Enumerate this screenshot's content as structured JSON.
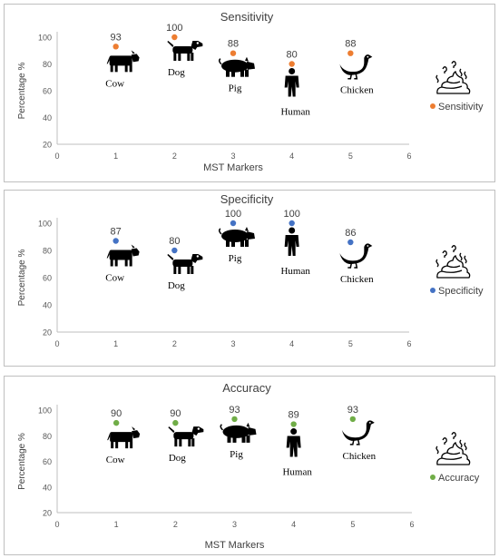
{
  "chart_data": [
    {
      "type": "scatter",
      "title": "Sensitivity",
      "xlabel": "MST Markers",
      "ylabel": "Percentage %",
      "xlim": [
        0,
        6
      ],
      "ylim": [
        20,
        100
      ],
      "x_ticks": [
        "0",
        "1",
        "2",
        "3",
        "4",
        "5",
        "6"
      ],
      "y_ticks": [
        "20",
        "40",
        "60",
        "80",
        "100"
      ],
      "grid": false,
      "legend_position": "right",
      "series": [
        {
          "name": "Sensitivity",
          "color": "#ed7d31",
          "x": [
            1,
            2,
            3,
            4,
            5
          ],
          "values": [
            93,
            100,
            88,
            80,
            88
          ],
          "data_labels": [
            "93",
            "100",
            "88",
            "80",
            "88"
          ]
        }
      ],
      "animals": [
        {
          "icon": "cow-icon",
          "label": "Cow"
        },
        {
          "icon": "dog-icon",
          "label": "Dog"
        },
        {
          "icon": "pig-icon",
          "label": "Pig"
        },
        {
          "icon": "human-icon",
          "label": "Human"
        },
        {
          "icon": "chicken-icon",
          "label": "Chicken"
        }
      ]
    },
    {
      "type": "scatter",
      "title": "Specificity",
      "xlabel": "",
      "ylabel": "Percentage %",
      "xlim": [
        0,
        6
      ],
      "ylim": [
        20,
        100
      ],
      "x_ticks": [
        "0",
        "1",
        "2",
        "3",
        "4",
        "5",
        "6"
      ],
      "y_ticks": [
        "20",
        "40",
        "60",
        "80",
        "100"
      ],
      "grid": false,
      "legend_position": "right",
      "series": [
        {
          "name": "Specificity",
          "color": "#4472c4",
          "x": [
            1,
            2,
            3,
            4,
            5
          ],
          "values": [
            87,
            80,
            100,
            100,
            86
          ],
          "data_labels": [
            "87",
            "80",
            "100",
            "100",
            "86"
          ]
        }
      ],
      "animals": [
        {
          "icon": "cow-icon",
          "label": "Cow"
        },
        {
          "icon": "dog-icon",
          "label": "Dog"
        },
        {
          "icon": "pig-icon",
          "label": "Pig"
        },
        {
          "icon": "human-icon",
          "label": "Human"
        },
        {
          "icon": "chicken-icon",
          "label": "Chicken"
        }
      ]
    },
    {
      "type": "scatter",
      "title": "Accuracy",
      "xlabel": "MST Markers",
      "ylabel": "Percentage %",
      "xlim": [
        0,
        6
      ],
      "ylim": [
        20,
        100
      ],
      "x_ticks": [
        "0",
        "1",
        "2",
        "3",
        "4",
        "5",
        "6"
      ],
      "y_ticks": [
        "20",
        "40",
        "60",
        "80",
        "100"
      ],
      "grid": false,
      "legend_position": "right",
      "series": [
        {
          "name": "Accuracy",
          "color": "#70ad47",
          "x": [
            1,
            2,
            3,
            4,
            5
          ],
          "values": [
            90,
            90,
            93,
            89,
            93
          ],
          "data_labels": [
            "90",
            "90",
            "93",
            "89",
            "93"
          ]
        }
      ],
      "animals": [
        {
          "icon": "cow-icon",
          "label": "Cow"
        },
        {
          "icon": "dog-icon",
          "label": "Dog"
        },
        {
          "icon": "pig-icon",
          "label": "Pig"
        },
        {
          "icon": "human-icon",
          "label": "Human"
        },
        {
          "icon": "chicken-icon",
          "label": "Chicken"
        }
      ]
    }
  ]
}
